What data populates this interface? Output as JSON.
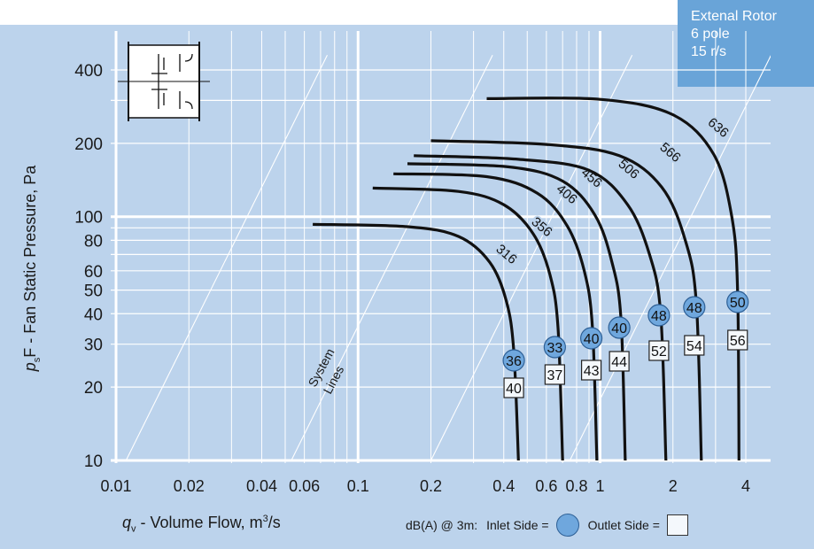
{
  "badge": {
    "line1": "Extenal Rotor",
    "line2": "6 pole",
    "line3": "15 r/s"
  },
  "axes": {
    "xlabel_main": "- Volume Flow, m",
    "xlabel_sym": "q",
    "xlabel_sub": "v",
    "xlabel_sup": "3",
    "xlabel_tail": "/s",
    "ylabel_sym": "p",
    "ylabel_sub": "s",
    "ylabel_main": "F - Fan Static Pressure, Pa"
  },
  "legend": {
    "prefix": "dB(A) @ 3m:",
    "inlet": "Inlet Side =",
    "outlet": "Outlet Side ="
  },
  "system_lines_label": [
    "System",
    "Lines"
  ],
  "colors": {
    "background": "#bcd3ec",
    "badge": "#69a4d8",
    "curve": "#111111",
    "inlet_marker": "#6fa7dd",
    "outlet_marker": "#f4f8fc",
    "grid": "#ffffff"
  },
  "chart_data": {
    "type": "line",
    "x_scale": "log",
    "y_scale": "log",
    "xlim": [
      0.01,
      4.8
    ],
    "ylim": [
      9,
      460
    ],
    "x_ticks": [
      {
        "value": 0.01,
        "label": "0.01"
      },
      {
        "value": 0.02,
        "label": "0.02"
      },
      {
        "value": 0.04,
        "label": "0.04"
      },
      {
        "value": 0.06,
        "label": "0.06"
      },
      {
        "value": 0.1,
        "label": "0.1"
      },
      {
        "value": 0.2,
        "label": "0.2"
      },
      {
        "value": 0.4,
        "label": "0.4"
      },
      {
        "value": 0.6,
        "label": "0.6"
      },
      {
        "value": 0.8,
        "label": "0.8"
      },
      {
        "value": 1,
        "label": "1"
      },
      {
        "value": 2,
        "label": "2"
      },
      {
        "value": 4,
        "label": "4"
      }
    ],
    "y_ticks": [
      {
        "value": 10,
        "label": "10"
      },
      {
        "value": 20,
        "label": "20"
      },
      {
        "value": 30,
        "label": "30"
      },
      {
        "value": 40,
        "label": "40"
      },
      {
        "value": 50,
        "label": "50"
      },
      {
        "value": 60,
        "label": "60"
      },
      {
        "value": 80,
        "label": "80"
      },
      {
        "value": 100,
        "label": "100"
      },
      {
        "value": 200,
        "label": "200"
      },
      {
        "value": 400,
        "label": "400"
      }
    ],
    "grid": true,
    "system_line_starts_x": [
      0.011,
      0.053,
      0.2,
      0.75
    ],
    "series": [
      {
        "name": "316",
        "label_at": [
          0.4,
          68
        ],
        "points": [
          [
            0.065,
            93
          ],
          [
            0.16,
            91
          ],
          [
            0.26,
            83
          ],
          [
            0.35,
            65
          ],
          [
            0.41,
            45
          ],
          [
            0.44,
            28
          ],
          [
            0.46,
            10
          ]
        ],
        "inlet_dba": "36",
        "outlet_dba": "40",
        "marker_x": 0.44
      },
      {
        "name": "356",
        "label_at": [
          0.56,
          88
        ],
        "points": [
          [
            0.115,
            131
          ],
          [
            0.26,
            127
          ],
          [
            0.4,
            112
          ],
          [
            0.53,
            85
          ],
          [
            0.62,
            58
          ],
          [
            0.67,
            35
          ],
          [
            0.7,
            10
          ]
        ],
        "inlet_dba": "33",
        "outlet_dba": "37",
        "marker_x": 0.65
      },
      {
        "name": "406",
        "label_at": [
          0.71,
          120
        ],
        "points": [
          [
            0.14,
            150
          ],
          [
            0.34,
            146
          ],
          [
            0.55,
            125
          ],
          [
            0.73,
            92
          ],
          [
            0.86,
            60
          ],
          [
            0.93,
            35
          ],
          [
            0.97,
            10
          ]
        ],
        "inlet_dba": "40",
        "outlet_dba": "43",
        "marker_x": 0.92
      },
      {
        "name": "456",
        "label_at": [
          0.9,
          140
        ],
        "points": [
          [
            0.16,
            165
          ],
          [
            0.42,
            160
          ],
          [
            0.7,
            140
          ],
          [
            0.95,
            102
          ],
          [
            1.12,
            65
          ],
          [
            1.22,
            38
          ],
          [
            1.27,
            10
          ]
        ],
        "inlet_dba": "40",
        "outlet_dba": "44",
        "marker_x": 1.2
      },
      {
        "name": "506",
        "label_at": [
          1.28,
          152
        ],
        "points": [
          [
            0.17,
            178
          ],
          [
            0.46,
            172
          ],
          [
            0.9,
            155
          ],
          [
            1.3,
            112
          ],
          [
            1.6,
            70
          ],
          [
            1.78,
            40
          ],
          [
            1.87,
            10
          ]
        ],
        "inlet_dba": "48",
        "outlet_dba": "52",
        "marker_x": 1.75
      },
      {
        "name": "566",
        "label_at": [
          1.9,
          178
        ],
        "points": [
          [
            0.2,
            205
          ],
          [
            0.6,
            198
          ],
          [
            1.2,
            178
          ],
          [
            1.8,
            132
          ],
          [
            2.25,
            80
          ],
          [
            2.5,
            44
          ],
          [
            2.62,
            10
          ]
        ],
        "inlet_dba": "48",
        "outlet_dba": "54",
        "marker_x": 2.45
      },
      {
        "name": "636",
        "label_at": [
          3.0,
          225
        ],
        "points": [
          [
            0.34,
            305
          ],
          [
            1.0,
            303
          ],
          [
            2.0,
            262
          ],
          [
            2.95,
            180
          ],
          [
            3.5,
            100
          ],
          [
            3.7,
            50
          ],
          [
            3.75,
            10
          ]
        ],
        "inlet_dba": "50",
        "outlet_dba": "56",
        "marker_x": 3.7
      }
    ]
  }
}
